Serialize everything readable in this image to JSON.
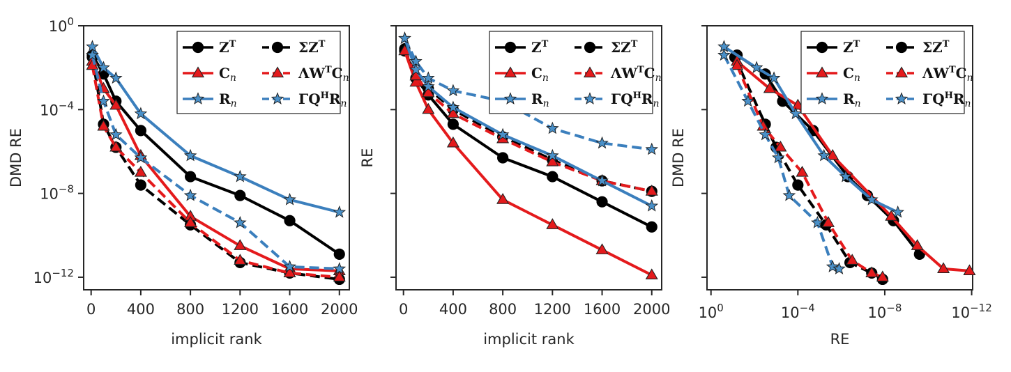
{
  "figure": {
    "colors": {
      "black": "#000000",
      "red": "#e41a1c",
      "blue": "#3b7fbd",
      "star_fill": "#4a90c8"
    }
  },
  "chart_data": [
    {
      "type": "line",
      "id": "left",
      "xlabel": "implicit rank",
      "ylabel": "DMD RE",
      "xscale": "linear",
      "yscale": "log",
      "xlim": [
        -60,
        2080
      ],
      "ylim_log10": [
        -12.6,
        0
      ],
      "xticks": [
        0,
        400,
        800,
        1200,
        1600,
        2000
      ],
      "xtick_labels": [
        "0",
        "400",
        "800",
        "1200",
        "1600",
        "2000"
      ],
      "yticks_log10": [
        0,
        -4,
        -8,
        -12
      ],
      "ytick_labels": [
        {
          "base": "10",
          "exp": "0"
        },
        {
          "base": "10",
          "exp": "−4"
        },
        {
          "base": "10",
          "exp": "−8"
        },
        {
          "base": "10",
          "exp": "−12"
        }
      ],
      "legend": {
        "placement": "top-right",
        "entries": [
          {
            "series": "Z^T",
            "label": "Z",
            "sup": "T",
            "sub": ""
          },
          {
            "series": "ΣZ^T",
            "label": "ΣZ",
            "sup": "T",
            "sub": ""
          },
          {
            "series": "C_n",
            "label": "C",
            "sup": "",
            "sub": "n"
          },
          {
            "series": "ΛW^TC_n",
            "label": "ΛW",
            "sup": "T",
            "sub": "",
            "tail": "C",
            "tailsub": "n"
          },
          {
            "series": "R_n",
            "label": "R",
            "sup": "",
            "sub": "n"
          },
          {
            "series": "ΓQ^HR_n",
            "label": "ΓQ",
            "sup": "H",
            "sub": "",
            "tail": "R",
            "tailsub": "n"
          }
        ]
      },
      "series": [
        {
          "name": "Z^T",
          "color": "black",
          "dash": false,
          "marker": "circle",
          "x": [
            10,
            100,
            200,
            400,
            800,
            1200,
            1600,
            2000
          ],
          "y_log10": [
            -1.4,
            -2.3,
            -3.6,
            -5.0,
            -7.2,
            -8.1,
            -9.3,
            -10.9
          ]
        },
        {
          "name": "ΣZ^T",
          "color": "black",
          "dash": true,
          "marker": "circle",
          "x": [
            10,
            100,
            200,
            400,
            800,
            1200,
            1600,
            2000
          ],
          "y_log10": [
            -1.5,
            -4.7,
            -5.8,
            -7.6,
            -9.5,
            -11.3,
            -11.8,
            -12.1
          ]
        },
        {
          "name": "C_n",
          "color": "red",
          "dash": false,
          "marker": "triangle",
          "x": [
            10,
            100,
            200,
            400,
            800,
            1200,
            1600,
            2000
          ],
          "y_log10": [
            -1.7,
            -3.0,
            -3.8,
            -6.2,
            -9.1,
            -10.5,
            -11.6,
            -11.7
          ]
        },
        {
          "name": "ΛW^TC_n",
          "color": "red",
          "dash": true,
          "marker": "triangle",
          "x": [
            10,
            100,
            200,
            400,
            800,
            1200,
            1600,
            2000
          ],
          "y_log10": [
            -1.9,
            -4.8,
            -5.8,
            -7.0,
            -9.4,
            -11.2,
            -11.8,
            -12.0
          ]
        },
        {
          "name": "R_n",
          "color": "blue",
          "dash": false,
          "marker": "star",
          "x": [
            10,
            100,
            200,
            400,
            800,
            1200,
            1600,
            2000
          ],
          "y_log10": [
            -1.0,
            -2.0,
            -2.5,
            -4.2,
            -6.2,
            -7.2,
            -8.3,
            -8.9
          ]
        },
        {
          "name": "ΓQ^HR_n",
          "color": "blue",
          "dash": true,
          "marker": "star",
          "x": [
            10,
            100,
            200,
            400,
            800,
            1200,
            1600,
            2000
          ],
          "y_log10": [
            -1.4,
            -3.6,
            -5.2,
            -6.3,
            -8.1,
            -9.4,
            -11.5,
            -11.6
          ]
        }
      ]
    },
    {
      "type": "line",
      "id": "middle",
      "xlabel": "implicit rank",
      "ylabel": "RE",
      "xscale": "linear",
      "yscale": "log",
      "xlim": [
        -60,
        2080
      ],
      "ylim_log10": [
        -12.6,
        0
      ],
      "xticks": [
        0,
        400,
        800,
        1200,
        1600,
        2000
      ],
      "xtick_labels": [
        "0",
        "400",
        "800",
        "1200",
        "1600",
        "2000"
      ],
      "yticks_log10": [
        0,
        -4,
        -8,
        -12
      ],
      "ytick_labels": [],
      "legend": {
        "placement": "top-right",
        "same_as": "left"
      },
      "series": [
        {
          "name": "Z^T",
          "color": "black",
          "dash": false,
          "marker": "circle",
          "x": [
            10,
            100,
            200,
            400,
            800,
            1200,
            1600,
            2000
          ],
          "y_log10": [
            -1.2,
            -2.5,
            -3.3,
            -4.7,
            -6.3,
            -7.2,
            -8.4,
            -9.6
          ]
        },
        {
          "name": "ΣZ^T",
          "color": "black",
          "dash": true,
          "marker": "circle",
          "x": [
            10,
            100,
            200,
            400,
            800,
            1200,
            1600,
            2000
          ],
          "y_log10": [
            -1.1,
            -2.5,
            -3.0,
            -4.0,
            -5.3,
            -6.4,
            -7.4,
            -7.9
          ]
        },
        {
          "name": "C_n",
          "color": "red",
          "dash": false,
          "marker": "triangle",
          "x": [
            10,
            100,
            200,
            400,
            800,
            1200,
            1600,
            2000
          ],
          "y_log10": [
            -1.2,
            -2.7,
            -4.0,
            -5.6,
            -8.3,
            -9.5,
            -10.7,
            -11.9
          ]
        },
        {
          "name": "ΛW^TC_n",
          "color": "red",
          "dash": true,
          "marker": "triangle",
          "x": [
            10,
            100,
            200,
            400,
            800,
            1200,
            1600,
            2000
          ],
          "y_log10": [
            -1.2,
            -2.4,
            -3.2,
            -4.2,
            -5.4,
            -6.5,
            -7.4,
            -7.9
          ]
        },
        {
          "name": "R_n",
          "color": "blue",
          "dash": false,
          "marker": "star",
          "x": [
            10,
            100,
            200,
            400,
            800,
            1200,
            1600,
            2000
          ],
          "y_log10": [
            -0.6,
            -2.1,
            -2.9,
            -3.9,
            -5.2,
            -6.2,
            -7.4,
            -8.6
          ]
        },
        {
          "name": "ΓQ^HR_n",
          "color": "blue",
          "dash": true,
          "marker": "star",
          "x": [
            10,
            100,
            200,
            400,
            800,
            1200,
            1600,
            2000
          ],
          "y_log10": [
            -0.6,
            -1.7,
            -2.5,
            -3.1,
            -3.6,
            -4.9,
            -5.6,
            -5.9
          ]
        }
      ]
    },
    {
      "type": "line",
      "id": "right",
      "xlabel": "RE",
      "ylabel": "DMD RE",
      "xscale": "log",
      "yscale": "log",
      "x_reversed": true,
      "xlim_log10": [
        0.0,
        -12.0
      ],
      "ylim_log10": [
        -12.6,
        0
      ],
      "xticks_log10": [
        0,
        -4,
        -8,
        -12
      ],
      "xtick_labels": [
        {
          "base": "10",
          "exp": "0"
        },
        {
          "base": "10",
          "exp": "−4"
        },
        {
          "base": "10",
          "exp": "−8"
        },
        {
          "base": "10",
          "exp": "−12"
        }
      ],
      "yticks_log10": [
        0,
        -4,
        -8,
        -12
      ],
      "ytick_labels": [],
      "legend": {
        "placement": "top-right",
        "same_as": "left"
      },
      "series": [
        {
          "name": "Z^T",
          "color": "black",
          "dash": false,
          "marker": "circle",
          "x_log10": [
            -1.2,
            -2.5,
            -3.3,
            -4.7,
            -6.3,
            -7.2,
            -8.4,
            -9.6
          ],
          "y_log10": [
            -1.4,
            -2.3,
            -3.6,
            -5.0,
            -7.2,
            -8.1,
            -9.3,
            -10.9
          ]
        },
        {
          "name": "ΣZ^T",
          "color": "black",
          "dash": true,
          "marker": "circle",
          "x_log10": [
            -1.1,
            -2.5,
            -3.0,
            -4.0,
            -5.3,
            -6.4,
            -7.4,
            -7.9
          ],
          "y_log10": [
            -1.5,
            -4.7,
            -5.8,
            -7.6,
            -9.5,
            -11.3,
            -11.8,
            -12.1
          ]
        },
        {
          "name": "C_n",
          "color": "red",
          "dash": false,
          "marker": "triangle",
          "x_log10": [
            -1.2,
            -2.7,
            -4.0,
            -5.6,
            -8.3,
            -9.5,
            -10.7,
            -11.9
          ],
          "y_log10": [
            -1.7,
            -3.0,
            -3.8,
            -6.2,
            -9.1,
            -10.5,
            -11.6,
            -11.7
          ]
        },
        {
          "name": "ΛW^TC_n",
          "color": "red",
          "dash": true,
          "marker": "triangle",
          "x_log10": [
            -1.2,
            -2.4,
            -3.2,
            -4.2,
            -5.4,
            -6.5,
            -7.4,
            -7.9
          ],
          "y_log10": [
            -1.9,
            -4.8,
            -5.8,
            -7.0,
            -9.4,
            -11.2,
            -11.8,
            -12.0
          ]
        },
        {
          "name": "R_n",
          "color": "blue",
          "dash": false,
          "marker": "star",
          "x_log10": [
            -0.6,
            -2.1,
            -2.9,
            -3.9,
            -5.2,
            -6.2,
            -7.4,
            -8.6
          ],
          "y_log10": [
            -1.0,
            -2.0,
            -2.5,
            -4.2,
            -6.2,
            -7.2,
            -8.3,
            -8.9
          ]
        },
        {
          "name": "ΓQ^HR_n",
          "color": "blue",
          "dash": true,
          "marker": "star",
          "x_log10": [
            -0.6,
            -1.7,
            -2.5,
            -3.1,
            -3.6,
            -4.9,
            -5.6,
            -5.9
          ],
          "y_log10": [
            -1.4,
            -3.6,
            -5.2,
            -6.3,
            -8.1,
            -9.4,
            -11.5,
            -11.6
          ]
        }
      ]
    }
  ]
}
